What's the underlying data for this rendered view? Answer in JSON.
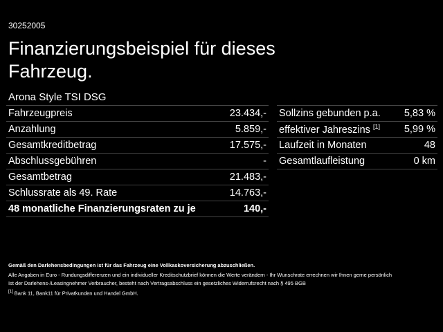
{
  "header": {
    "id": "30252005",
    "title_lines": [
      "Finanzierungsbeispiel für dieses",
      "Fahrzeug."
    ]
  },
  "vehicle": "Arona Style TSI DSG",
  "financing_table": {
    "rows": [
      {
        "label": "Fahrzeugpreis",
        "value": "23.434,-"
      },
      {
        "label": "Anzahlung",
        "value": "5.859,-"
      },
      {
        "label": "Gesamtkreditbetrag",
        "value": "17.575,-"
      },
      {
        "label": "Abschlussgebühren",
        "value": "-"
      },
      {
        "label": "Gesamtbetrag",
        "value": "21.483,-"
      },
      {
        "label": "Schlussrate als 49. Rate",
        "value": "14.763,-"
      },
      {
        "label": "48 monatliche Finanzierungsraten zu je",
        "value": "140,-"
      }
    ]
  },
  "rates_table": {
    "rows": [
      {
        "label": "Sollzins gebunden p.a.",
        "value": "5,83 %"
      },
      {
        "label": "effektiver Jahreszins",
        "note": "[1]",
        "value": "5,99 %"
      },
      {
        "label": "Laufzeit in Monaten",
        "value": "48"
      },
      {
        "label": "Gesamtlaufleistung",
        "value": "0 km"
      }
    ]
  },
  "notes": [
    "Gemäß den Darlehensbedingungen ist für das Fahrzeug eine Vollkaskoversicherung abzuschließen.",
    "Alle Angaben in Euro - Rundungsdifferenzen und ein individueller Kreditschutzbrief können die Werte verändern - Ihr Wunschrate errechnen wir Ihnen gerne persönlich",
    "Ist der Darlehens-/Leasingnehmer Verbraucher, besteht nach Vertragsabschluss ein gesetzliches Widerrufsrecht nach § 495 BGB"
  ],
  "footnote": {
    "marker": "[1]",
    "text": "Bank 11, Bank11 für Privatkunden und Handel GmbH."
  }
}
